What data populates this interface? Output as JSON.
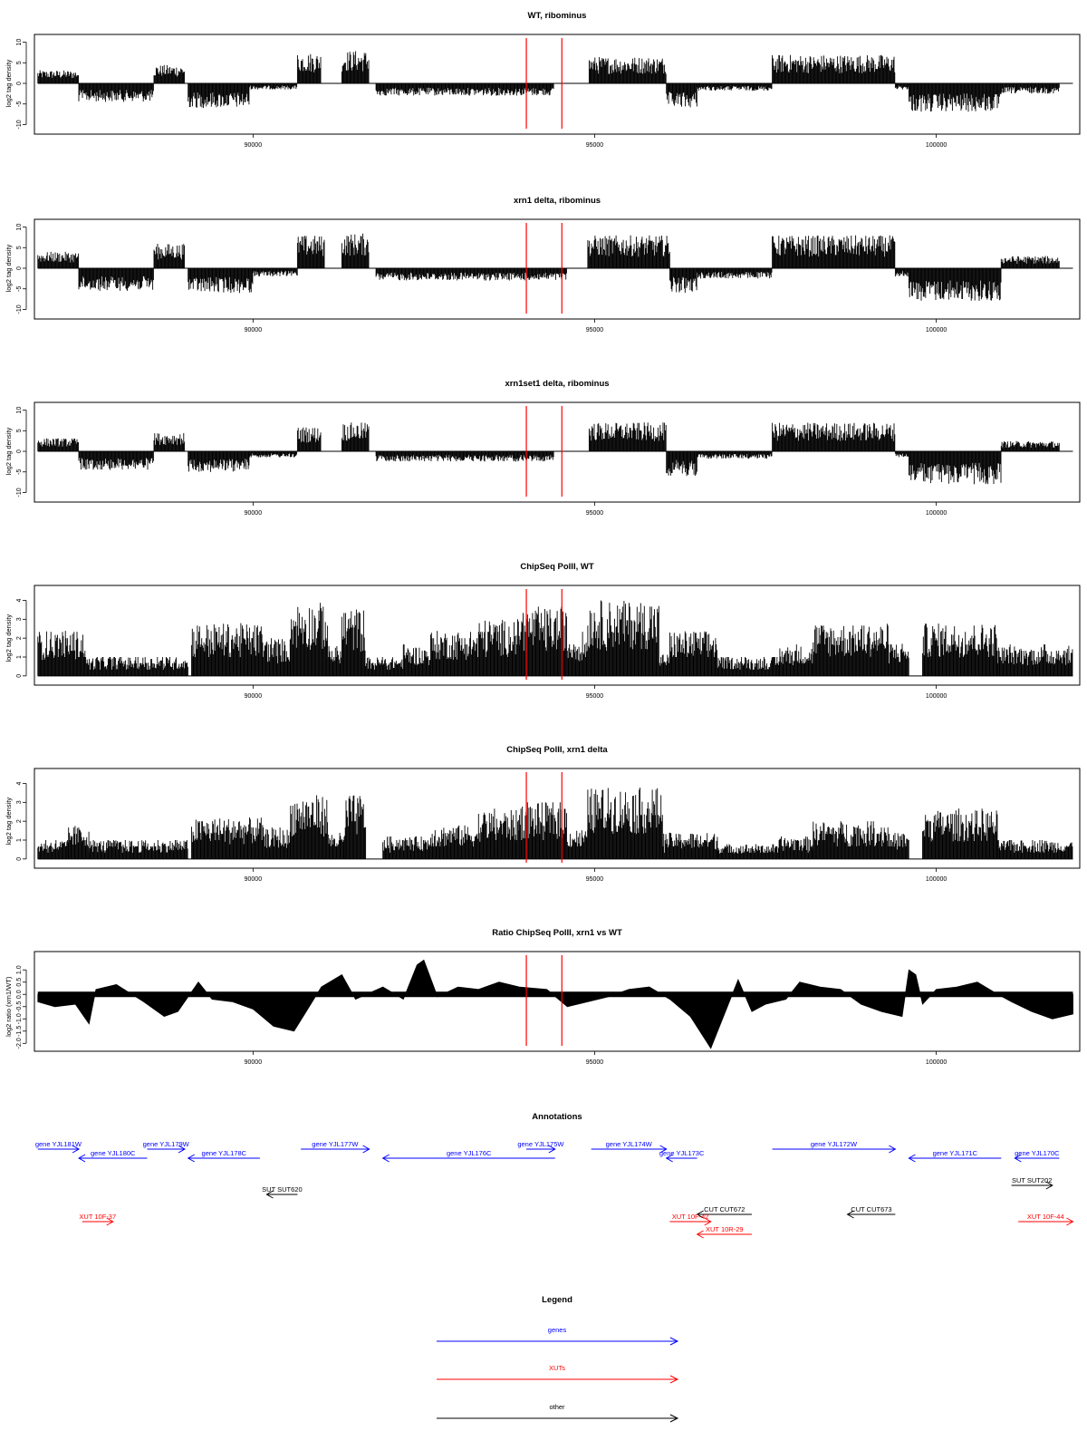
{
  "chart_data": [
    {
      "type": "bar",
      "title": "WT, ribominus",
      "ylabel": "log2 tag density",
      "xlim": [
        86800,
        102100
      ],
      "ylim": [
        -11,
        11
      ],
      "yticks": [
        -10,
        -5,
        0,
        5,
        10
      ],
      "xticks": [
        90000,
        95000,
        100000
      ],
      "reference_lines_x": [
        94000,
        94520
      ],
      "segments": [
        {
          "start": 86850,
          "end": 87450,
          "sign": 1,
          "amp": 3.2
        },
        {
          "start": 87450,
          "end": 88550,
          "sign": -1,
          "amp": 4.5
        },
        {
          "start": 88550,
          "end": 89000,
          "sign": 1,
          "amp": 4.5
        },
        {
          "start": 89050,
          "end": 89950,
          "sign": -1,
          "amp": 6.0
        },
        {
          "start": 89950,
          "end": 90650,
          "sign": -1,
          "amp": 1.5
        },
        {
          "start": 90650,
          "end": 91000,
          "sign": 1,
          "amp": 7.5
        },
        {
          "start": 91300,
          "end": 91700,
          "sign": 1,
          "amp": 8.0
        },
        {
          "start": 91800,
          "end": 94400,
          "sign": -1,
          "amp": 3.0
        },
        {
          "start": 94920,
          "end": 96050,
          "sign": 1,
          "amp": 6.5
        },
        {
          "start": 96050,
          "end": 96500,
          "sign": -1,
          "amp": 6.0
        },
        {
          "start": 96500,
          "end": 97600,
          "sign": -1,
          "amp": 1.8
        },
        {
          "start": 97600,
          "end": 99400,
          "sign": 1,
          "amp": 7.0
        },
        {
          "start": 99400,
          "end": 99600,
          "sign": -1,
          "amp": 1.5
        },
        {
          "start": 99600,
          "end": 100950,
          "sign": -1,
          "amp": 7.0
        },
        {
          "start": 100950,
          "end": 101800,
          "sign": -1,
          "amp": 2.5
        }
      ]
    },
    {
      "type": "bar",
      "title": "xrn1 delta, ribominus",
      "ylabel": "log2 tag density",
      "xlim": [
        86800,
        102100
      ],
      "ylim": [
        -11,
        11
      ],
      "yticks": [
        -10,
        -5,
        0,
        5,
        10
      ],
      "xticks": [
        90000,
        95000,
        100000
      ],
      "reference_lines_x": [
        94000,
        94520
      ],
      "segments": [
        {
          "start": 86850,
          "end": 87450,
          "sign": 1,
          "amp": 4.0
        },
        {
          "start": 87450,
          "end": 88550,
          "sign": -1,
          "amp": 5.5
        },
        {
          "start": 88550,
          "end": 89000,
          "sign": 1,
          "amp": 6.0
        },
        {
          "start": 89050,
          "end": 90000,
          "sign": -1,
          "amp": 6.0
        },
        {
          "start": 90000,
          "end": 90650,
          "sign": -1,
          "amp": 2.0
        },
        {
          "start": 90650,
          "end": 91050,
          "sign": 1,
          "amp": 8.0
        },
        {
          "start": 91300,
          "end": 91700,
          "sign": 1,
          "amp": 8.5
        },
        {
          "start": 91800,
          "end": 94600,
          "sign": -1,
          "amp": 3.0
        },
        {
          "start": 94900,
          "end": 96100,
          "sign": 1,
          "amp": 8.0
        },
        {
          "start": 96100,
          "end": 96500,
          "sign": -1,
          "amp": 6.0
        },
        {
          "start": 96500,
          "end": 97600,
          "sign": -1,
          "amp": 2.5
        },
        {
          "start": 97600,
          "end": 99400,
          "sign": 1,
          "amp": 8.0
        },
        {
          "start": 99400,
          "end": 99600,
          "sign": -1,
          "amp": 2.0
        },
        {
          "start": 99600,
          "end": 100950,
          "sign": -1,
          "amp": 8.0
        },
        {
          "start": 100950,
          "end": 101800,
          "sign": 1,
          "amp": 3.0
        }
      ]
    },
    {
      "type": "bar",
      "title": "xrn1set1 delta, ribominus",
      "ylabel": "log2 tag density",
      "xlim": [
        86800,
        102100
      ],
      "ylim": [
        -11,
        11
      ],
      "yticks": [
        -10,
        -5,
        0,
        5,
        10
      ],
      "xticks": [
        90000,
        95000,
        100000
      ],
      "reference_lines_x": [
        94000,
        94520
      ],
      "segments": [
        {
          "start": 86850,
          "end": 87450,
          "sign": 1,
          "amp": 3.2
        },
        {
          "start": 87450,
          "end": 88550,
          "sign": -1,
          "amp": 4.5
        },
        {
          "start": 88550,
          "end": 89000,
          "sign": 1,
          "amp": 4.5
        },
        {
          "start": 89050,
          "end": 89950,
          "sign": -1,
          "amp": 5.0
        },
        {
          "start": 89950,
          "end": 90650,
          "sign": -1,
          "amp": 1.5
        },
        {
          "start": 90650,
          "end": 91000,
          "sign": 1,
          "amp": 6.0
        },
        {
          "start": 91300,
          "end": 91700,
          "sign": 1,
          "amp": 7.0
        },
        {
          "start": 91800,
          "end": 94400,
          "sign": -1,
          "amp": 2.5
        },
        {
          "start": 94920,
          "end": 96050,
          "sign": 1,
          "amp": 7.0
        },
        {
          "start": 96050,
          "end": 96500,
          "sign": -1,
          "amp": 6.0
        },
        {
          "start": 96500,
          "end": 97600,
          "sign": -1,
          "amp": 1.8
        },
        {
          "start": 97600,
          "end": 99400,
          "sign": 1,
          "amp": 7.0
        },
        {
          "start": 99400,
          "end": 99600,
          "sign": -1,
          "amp": 1.5
        },
        {
          "start": 99600,
          "end": 100950,
          "sign": -1,
          "amp": 8.0
        },
        {
          "start": 100950,
          "end": 101800,
          "sign": 1,
          "amp": 2.5
        }
      ]
    },
    {
      "type": "bar",
      "title": "ChipSeq PolII, WT",
      "ylabel": "log2 tag density",
      "xlim": [
        86800,
        102100
      ],
      "ylim": [
        -0.2,
        4.6
      ],
      "yticks": [
        0,
        1,
        2,
        3,
        4
      ],
      "xticks": [
        90000,
        95000,
        100000
      ],
      "reference_lines_x": [
        94000,
        94520
      ],
      "segments": [
        {
          "start": 86850,
          "end": 87550,
          "amp": 2.4
        },
        {
          "start": 87550,
          "end": 89050,
          "amp": 1.0
        },
        {
          "start": 89100,
          "end": 90150,
          "amp": 2.8
        },
        {
          "start": 90150,
          "end": 90550,
          "amp": 2.0
        },
        {
          "start": 90550,
          "end": 91100,
          "amp": 3.9
        },
        {
          "start": 91100,
          "end": 91300,
          "amp": 1.6
        },
        {
          "start": 91300,
          "end": 91650,
          "amp": 3.6
        },
        {
          "start": 91650,
          "end": 92200,
          "amp": 1.0
        },
        {
          "start": 92200,
          "end": 92600,
          "amp": 1.6
        },
        {
          "start": 92600,
          "end": 93300,
          "amp": 2.4
        },
        {
          "start": 93300,
          "end": 93900,
          "amp": 3.0
        },
        {
          "start": 93900,
          "end": 94600,
          "amp": 3.6
        },
        {
          "start": 94600,
          "end": 94900,
          "amp": 2.2
        },
        {
          "start": 94900,
          "end": 95950,
          "amp": 4.0
        },
        {
          "start": 95950,
          "end": 96100,
          "amp": 1.2
        },
        {
          "start": 96100,
          "end": 96800,
          "amp": 2.4
        },
        {
          "start": 96800,
          "end": 97700,
          "amp": 1.0
        },
        {
          "start": 97700,
          "end": 98200,
          "amp": 1.6
        },
        {
          "start": 98200,
          "end": 99300,
          "amp": 2.8
        },
        {
          "start": 99300,
          "end": 99600,
          "amp": 1.8
        },
        {
          "start": 99600,
          "end": 99800,
          "amp": 0.0
        },
        {
          "start": 99800,
          "end": 100900,
          "amp": 2.8
        },
        {
          "start": 100900,
          "end": 102000,
          "amp": 1.6
        }
      ]
    },
    {
      "type": "bar",
      "title": "ChipSeq PolII, xrn1 delta",
      "ylabel": "log2 tag density",
      "xlim": [
        86800,
        102100
      ],
      "ylim": [
        -0.2,
        4.6
      ],
      "yticks": [
        0,
        1,
        2,
        3,
        4
      ],
      "xticks": [
        90000,
        95000,
        100000
      ],
      "reference_lines_x": [
        94000,
        94520
      ],
      "segments": [
        {
          "start": 86850,
          "end": 87300,
          "amp": 1.0
        },
        {
          "start": 87300,
          "end": 87600,
          "amp": 1.8
        },
        {
          "start": 87600,
          "end": 89050,
          "amp": 1.0
        },
        {
          "start": 89100,
          "end": 90150,
          "amp": 2.2
        },
        {
          "start": 90150,
          "end": 90550,
          "amp": 1.6
        },
        {
          "start": 90550,
          "end": 91100,
          "amp": 3.4
        },
        {
          "start": 91100,
          "end": 91350,
          "amp": 1.4
        },
        {
          "start": 91350,
          "end": 91650,
          "amp": 3.4
        },
        {
          "start": 91650,
          "end": 91900,
          "amp": 0.0
        },
        {
          "start": 91900,
          "end": 92600,
          "amp": 1.2
        },
        {
          "start": 92600,
          "end": 93300,
          "amp": 1.8
        },
        {
          "start": 93300,
          "end": 93900,
          "amp": 2.6
        },
        {
          "start": 93900,
          "end": 94600,
          "amp": 3.0
        },
        {
          "start": 94600,
          "end": 94900,
          "amp": 1.6
        },
        {
          "start": 94900,
          "end": 96000,
          "amp": 3.8
        },
        {
          "start": 96000,
          "end": 96800,
          "amp": 1.4
        },
        {
          "start": 96800,
          "end": 97700,
          "amp": 0.8
        },
        {
          "start": 97700,
          "end": 98200,
          "amp": 1.2
        },
        {
          "start": 98200,
          "end": 99300,
          "amp": 2.0
        },
        {
          "start": 99300,
          "end": 99600,
          "amp": 1.4
        },
        {
          "start": 99600,
          "end": 99800,
          "amp": 0.0
        },
        {
          "start": 99800,
          "end": 100900,
          "amp": 2.6
        },
        {
          "start": 100900,
          "end": 102000,
          "amp": 1.0
        }
      ]
    },
    {
      "type": "area",
      "title": "Ratio ChipSeq PolII, xrn1 vs WT",
      "ylabel": "log2 ratio (xrn1/WT)",
      "xlim": [
        86800,
        102100
      ],
      "ylim": [
        -2.1,
        1.6
      ],
      "yticks": [
        -2.0,
        -1.5,
        -1.0,
        -0.5,
        0.0,
        0.5,
        1.0
      ],
      "xticks": [
        90000,
        95000,
        100000
      ],
      "reference_lines_x": [
        94000,
        94520
      ],
      "x": [
        86850,
        87100,
        87400,
        87600,
        87700,
        88000,
        88400,
        88700,
        88900,
        89200,
        89400,
        89700,
        90000,
        90300,
        90600,
        90800,
        91000,
        91300,
        91500,
        91900,
        92200,
        92400,
        92500,
        92700,
        93000,
        93300,
        93600,
        93900,
        94300,
        94600,
        94900,
        95200,
        95500,
        95800,
        96100,
        96400,
        96700,
        96900,
        97100,
        97300,
        97500,
        97800,
        98000,
        98300,
        98600,
        98900,
        99200,
        99500,
        99600,
        99700,
        99800,
        100000,
        100300,
        100600,
        100900,
        101100,
        101400,
        101700,
        102000
      ],
      "values": [
        -0.3,
        -0.5,
        -0.4,
        -1.2,
        0.2,
        0.4,
        -0.3,
        -0.9,
        -0.7,
        0.5,
        -0.2,
        -0.3,
        -0.6,
        -1.3,
        -1.5,
        -0.6,
        0.3,
        0.8,
        -0.2,
        0.3,
        -0.2,
        1.2,
        1.4,
        -0.1,
        0.3,
        0.2,
        0.5,
        0.3,
        0.2,
        -0.5,
        -0.3,
        -0.1,
        0.2,
        0.3,
        -0.2,
        -0.9,
        -2.2,
        -0.8,
        0.6,
        -0.7,
        -0.4,
        -0.2,
        0.5,
        0.3,
        0.2,
        -0.4,
        -0.7,
        -0.9,
        1.0,
        0.8,
        -0.4,
        0.2,
        0.3,
        0.5,
        0.0,
        -0.3,
        -0.7,
        -1.0,
        -0.8
      ]
    }
  ],
  "annotations": {
    "title": "Annotations",
    "items": [
      {
        "label": "gene YJL181W",
        "color": "#0000ff",
        "row": 0,
        "start": 86850,
        "end": 87450,
        "dir": "right"
      },
      {
        "label": "gene YJL180C",
        "color": "#0000ff",
        "row": 1,
        "start": 87450,
        "end": 88450,
        "dir": "left"
      },
      {
        "label": "gene YJL179W",
        "color": "#0000ff",
        "row": 0,
        "start": 88450,
        "end": 89000,
        "dir": "right"
      },
      {
        "label": "gene YJL178C",
        "color": "#0000ff",
        "row": 1,
        "start": 89050,
        "end": 90100,
        "dir": "left"
      },
      {
        "label": "gene YJL177W",
        "color": "#0000ff",
        "row": 0,
        "start": 90700,
        "end": 91700,
        "dir": "right"
      },
      {
        "label": "gene YJL176C",
        "color": "#0000ff",
        "row": 1,
        "start": 91900,
        "end": 94420,
        "dir": "left"
      },
      {
        "label": "gene YJL175W",
        "color": "#0000ff",
        "row": 0,
        "start": 94000,
        "end": 94420,
        "dir": "right"
      },
      {
        "label": "gene YJL174W",
        "color": "#0000ff",
        "row": 0,
        "start": 94950,
        "end": 96050,
        "dir": "right"
      },
      {
        "label": "gene YJL173C",
        "color": "#0000ff",
        "row": 1,
        "start": 96050,
        "end": 96500,
        "dir": "left"
      },
      {
        "label": "gene YJL172W",
        "color": "#0000ff",
        "row": 0,
        "start": 97600,
        "end": 99400,
        "dir": "right"
      },
      {
        "label": "gene YJL171C",
        "color": "#0000ff",
        "row": 1,
        "start": 99600,
        "end": 100950,
        "dir": "left"
      },
      {
        "label": "gene YJL170C",
        "color": "#0000ff",
        "row": 1,
        "start": 101150,
        "end": 101800,
        "dir": "left"
      },
      {
        "label": "SUT SUT620",
        "color": "#000000",
        "row": 3,
        "start": 90200,
        "end": 90650,
        "dir": "left"
      },
      {
        "label": "SUT SUT202",
        "color": "#000000",
        "row": 2,
        "start": 101100,
        "end": 101700,
        "dir": "right"
      },
      {
        "label": "CUT CUT672",
        "color": "#000000",
        "row": 4,
        "start": 96500,
        "end": 97300,
        "dir": "left"
      },
      {
        "label": "CUT CUT673",
        "color": "#000000",
        "row": 4,
        "start": 98700,
        "end": 99400,
        "dir": "left"
      },
      {
        "label": "XUT 10F-37",
        "color": "#ff0000",
        "row": 5,
        "start": 87500,
        "end": 87950,
        "dir": "right"
      },
      {
        "label": "XUT 10F-42",
        "color": "#ff0000",
        "row": 5,
        "start": 96100,
        "end": 96700,
        "dir": "right"
      },
      {
        "label": "XUT 10R-29",
        "color": "#ff0000",
        "row": 6,
        "start": 96500,
        "end": 97300,
        "dir": "left"
      },
      {
        "label": "XUT 10F-44",
        "color": "#ff0000",
        "row": 5,
        "start": 101200,
        "end": 102000,
        "dir": "right"
      }
    ]
  },
  "legend": {
    "title": "Legend",
    "entries": [
      {
        "label": "genes",
        "color": "#0000ff"
      },
      {
        "label": "XUTs",
        "color": "#ff0000"
      },
      {
        "label": "other",
        "color": "#000000"
      }
    ]
  }
}
